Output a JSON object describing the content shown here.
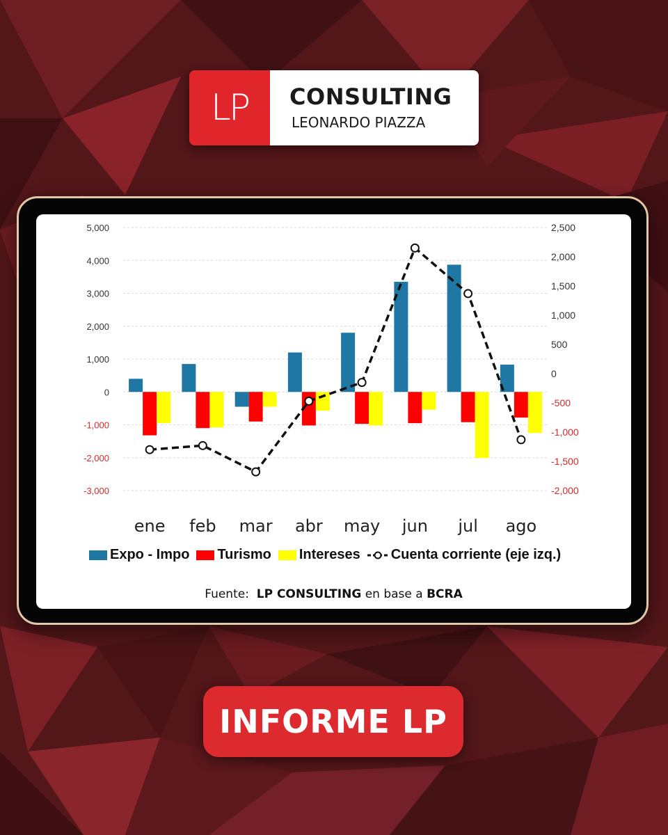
{
  "brand": {
    "mark": "LP",
    "title": "CONSULTING",
    "subtitle": "LEONARDO PIAZZA"
  },
  "colors": {
    "background": "#5a1a1e",
    "accent_red": "#e0262b",
    "expo_impo": "#1f77a3",
    "turismo": "#ff0000",
    "intereses": "#ffff00",
    "cuenta": "#111111",
    "negative_tick": "#d42a2a"
  },
  "chart_data": {
    "type": "bar",
    "categories": [
      "ene",
      "feb",
      "mar",
      "abr",
      "may",
      "jun",
      "jul",
      "ago"
    ],
    "left_axis": {
      "ticks": [
        "5,000",
        "4,000",
        "3,000",
        "2,000",
        "1,000",
        "0",
        "-1,000",
        "-2,000",
        "-3,000"
      ],
      "ylim": [
        -3000,
        5000
      ]
    },
    "right_axis": {
      "ticks": [
        "2,500",
        "2,000",
        "1,500",
        "1,000",
        "500",
        "0",
        "-500",
        "-1,000",
        "-1,500",
        "-2,000"
      ],
      "ylim": [
        -2000,
        2500
      ]
    },
    "grid": true,
    "series": [
      {
        "name": "Expo - Impo",
        "type": "bar",
        "axis": "left",
        "values": [
          400,
          850,
          -450,
          1200,
          1800,
          3350,
          3870,
          830
        ]
      },
      {
        "name": "Turismo",
        "type": "bar",
        "axis": "left",
        "values": [
          -1320,
          -1100,
          -900,
          -1020,
          -970,
          -950,
          -920,
          -780
        ]
      },
      {
        "name": "Intereses",
        "type": "bar",
        "axis": "left",
        "values": [
          -950,
          -1080,
          -450,
          -570,
          -1020,
          -540,
          -2010,
          -1250
        ]
      },
      {
        "name": "Cuenta corriente (eje izq.)",
        "type": "line",
        "axis": "right",
        "values": [
          -1300,
          -1230,
          -1680,
          -470,
          -150,
          2150,
          1370,
          -1130
        ]
      }
    ],
    "legend_position": "bottom"
  },
  "source": {
    "prefix": "Fuente:",
    "org": "LP CONSULTING",
    "middle": "en base a",
    "origin": "BCRA"
  },
  "cta": {
    "label": "INFORME LP"
  }
}
